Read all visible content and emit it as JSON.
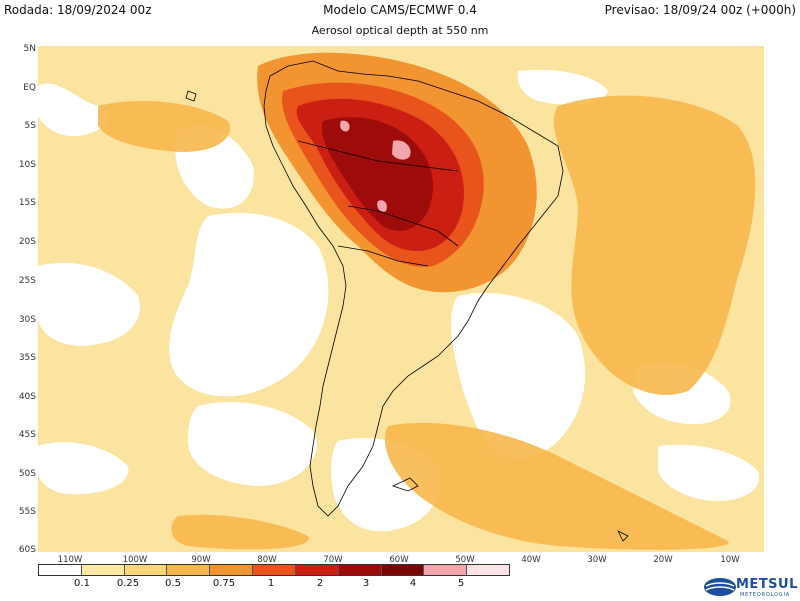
{
  "header": {
    "left": "Rodada: 18/09/2024 00z",
    "center": "Modelo CAMS/ECMWF 0.4",
    "right": "Previsao: 18/09/24 00z (+000h)"
  },
  "subtitle": "Aerosol optical depth at 550 nm",
  "axes": {
    "lat_labels": [
      "5N",
      "EQ",
      "5S",
      "10S",
      "15S",
      "20S",
      "25S",
      "30S",
      "35S",
      "40S",
      "45S",
      "50S",
      "55S",
      "60S"
    ],
    "lon_labels": [
      "110W",
      "100W",
      "90W",
      "80W",
      "70W",
      "60W",
      "50W",
      "40W",
      "30W",
      "20W",
      "10W"
    ]
  },
  "legend": {
    "labels": [
      "0.1",
      "0.25",
      "0.5",
      "0.75",
      "1",
      "2",
      "3",
      "4",
      "5"
    ],
    "colors": [
      "#ffffff",
      "#ffe9a3",
      "#fbd67a",
      "#f8b74c",
      "#f29430",
      "#e8541c",
      "#cc1f14",
      "#9e0b0b",
      "#7a0505",
      "#f3a6ad",
      "#fde3e5"
    ]
  },
  "map": {
    "field": "aerosol optical depth",
    "colors": {
      "ocean_base": "#fbe3a0",
      "clean": "#ffffff",
      "moderate": "#f8b74c",
      "high": "#f29430",
      "very_high": "#e8541c",
      "extreme": "#cc1f14",
      "peak": "#9e0b0b",
      "max": "#f3a6ad"
    }
  },
  "logo": {
    "name": "METSUL",
    "tagline": "METEOROLOGIA"
  }
}
